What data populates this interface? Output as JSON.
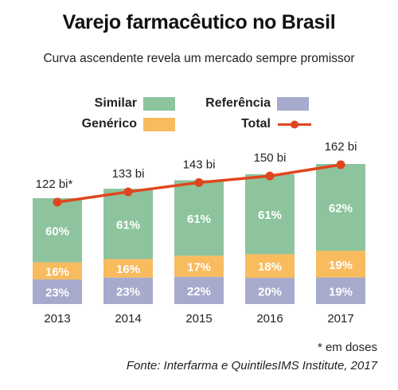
{
  "title": "Varejo farmacêutico no Brasil",
  "subtitle": "Curva ascendente revela um mercado sempre promissor",
  "legend": {
    "similar": "Similar",
    "generico": "Genérico",
    "referencia": "Referência",
    "total": "Total"
  },
  "colors": {
    "similar": "#8dc49d",
    "generico": "#f8bb5e",
    "referencia": "#a6aacd",
    "total": "#e0461e",
    "bar_label": "#ffffff"
  },
  "chart_data": {
    "type": "bar",
    "stacked": true,
    "categories": [
      "2013",
      "2014",
      "2015",
      "2016",
      "2017"
    ],
    "series": [
      {
        "name": "Referência",
        "values": [
          23,
          23,
          22,
          20,
          19
        ],
        "labels": [
          "23%",
          "23%",
          "22%",
          "20%",
          "19%"
        ]
      },
      {
        "name": "Genérico",
        "values": [
          16,
          16,
          17,
          18,
          19
        ],
        "labels": [
          "16%",
          "16%",
          "17%",
          "18%",
          "19%"
        ]
      },
      {
        "name": "Similar",
        "values": [
          60,
          61,
          61,
          61,
          62
        ],
        "labels": [
          "60%",
          "61%",
          "61%",
          "61%",
          "62%"
        ]
      }
    ],
    "line": {
      "name": "Total",
      "values": [
        122,
        133,
        143,
        150,
        162
      ],
      "labels": [
        "122 bi*",
        "133 bi",
        "143 bi",
        "150 bi",
        "162 bi"
      ]
    },
    "legend_position": "top",
    "grid": false
  },
  "footnote": "* em doses",
  "source": "Fonte: Interfarma e QuintilesIMS Institute, 2017"
}
